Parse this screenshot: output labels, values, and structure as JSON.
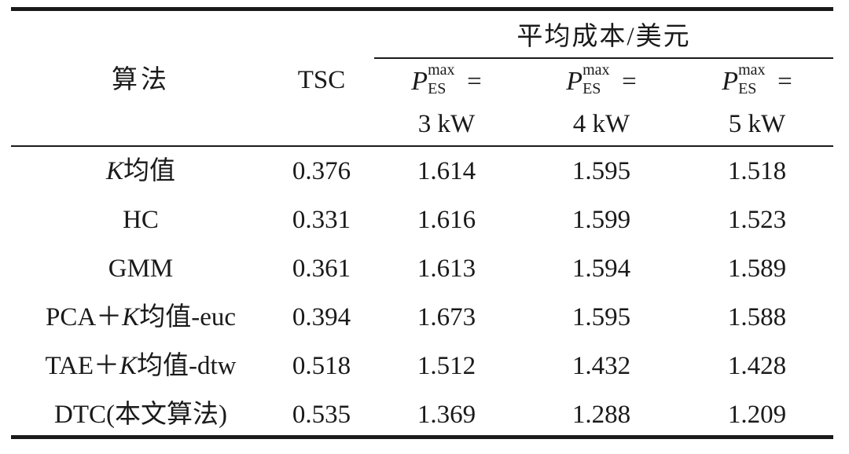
{
  "table": {
    "header": {
      "algorithm": "算法",
      "tsc": "TSC",
      "group": "平均成本/美元",
      "subcolumns": [
        {
          "symbol": "P",
          "sup": "max",
          "sub": "ES",
          "eq": "=",
          "value": "3 kW"
        },
        {
          "symbol": "P",
          "sup": "max",
          "sub": "ES",
          "eq": "=",
          "value": "4 kW"
        },
        {
          "symbol": "P",
          "sup": "max",
          "sub": "ES",
          "eq": "=",
          "value": "5 kW"
        }
      ]
    },
    "rows": [
      {
        "label_italic": "K",
        "label_rest": "均值",
        "tsc": "0.376",
        "c3": "1.614",
        "c4": "1.595",
        "c5": "1.518"
      },
      {
        "label_italic": "",
        "label_rest": "HC",
        "tsc": "0.331",
        "c3": "1.616",
        "c4": "1.599",
        "c5": "1.523"
      },
      {
        "label_italic": "",
        "label_rest": "GMM",
        "tsc": "0.361",
        "c3": "1.613",
        "c4": "1.594",
        "c5": "1.589"
      },
      {
        "label_pre": "PCA＋",
        "label_italic": "K",
        "label_rest": "均值-euc",
        "tsc": "0.394",
        "c3": "1.673",
        "c4": "1.595",
        "c5": "1.588"
      },
      {
        "label_pre": "TAE＋",
        "label_italic": "K",
        "label_rest": "均值-dtw",
        "tsc": "0.518",
        "c3": "1.512",
        "c4": "1.432",
        "c5": "1.428"
      },
      {
        "label_italic": "",
        "label_rest": "DTC(本文算法)",
        "tsc": "0.535",
        "c3": "1.369",
        "c4": "1.288",
        "c5": "1.209"
      }
    ]
  }
}
